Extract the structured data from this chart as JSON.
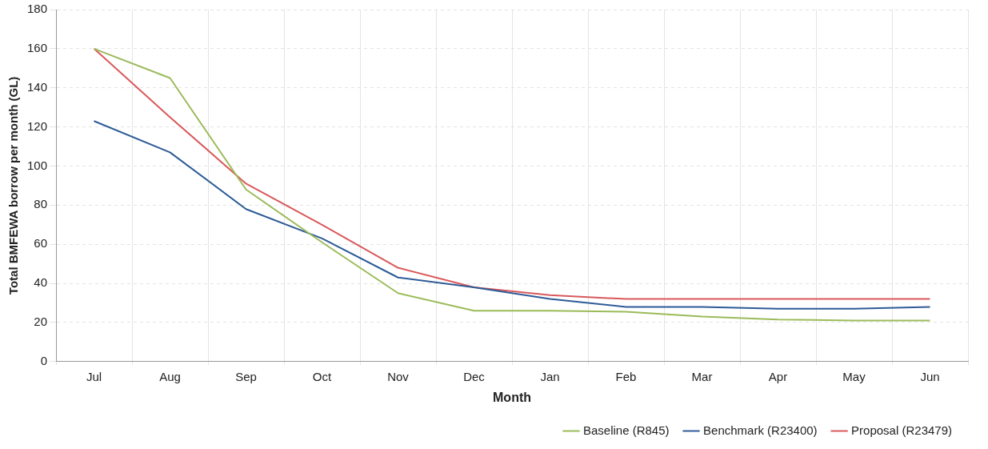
{
  "chart_data": {
    "type": "line",
    "xlabel": "Month",
    "ylabel": "Total BMFEWA borrow per month (GL)",
    "categories": [
      "Jul",
      "Aug",
      "Sep",
      "Oct",
      "Nov",
      "Dec",
      "Jan",
      "Feb",
      "Mar",
      "Apr",
      "May",
      "Jun"
    ],
    "series": [
      {
        "name": "Baseline (R845)",
        "color": "#9bbb59",
        "values": [
          160,
          145,
          88,
          61,
          35,
          26,
          26,
          25.5,
          23,
          21.5,
          21,
          21
        ]
      },
      {
        "name": "Benchmark (R23400)",
        "color": "#2e5b97",
        "values": [
          123,
          107,
          78,
          63,
          43,
          38,
          32,
          28,
          28,
          27,
          27,
          28
        ]
      },
      {
        "name": "Proposal (R23479)",
        "color": "#d9595b",
        "values": [
          160,
          125,
          91,
          70,
          48,
          38,
          34,
          32,
          32,
          32,
          32,
          32
        ]
      }
    ],
    "ylim": [
      0,
      180
    ],
    "yticks": [
      0,
      20,
      40,
      60,
      80,
      100,
      120,
      140,
      160,
      180
    ],
    "grid": true,
    "legend": "bottom",
    "marker": "none",
    "line_style": "solid"
  }
}
